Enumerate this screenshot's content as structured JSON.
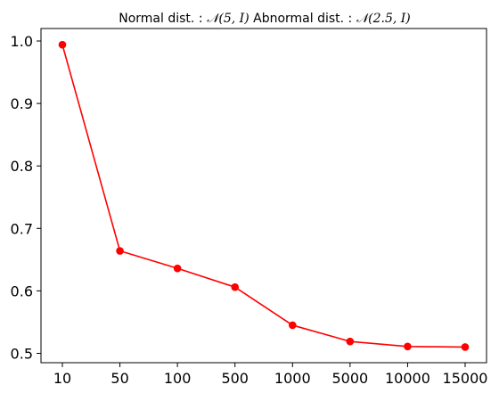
{
  "chart_data": {
    "type": "line",
    "title": {
      "part1": "Normal dist. : ",
      "dist1": "𝒩(5, I)",
      "part2": " Abnormal dist. : ",
      "dist2": "𝒩(2.5, I)"
    },
    "xlabel": "",
    "ylabel": "",
    "categories": [
      "10",
      "50",
      "100",
      "500",
      "1000",
      "5000",
      "10000",
      "15000"
    ],
    "series": [
      {
        "values": [
          0.994,
          0.664,
          0.636,
          0.606,
          0.545,
          0.519,
          0.511,
          0.51
        ],
        "color": "#ff0000",
        "marker": "circle"
      }
    ],
    "ylim": [
      0.485,
      1.02
    ],
    "yticks": [
      0.5,
      0.6,
      0.7,
      0.8,
      0.9,
      1.0
    ],
    "ytick_labels": [
      "0.5",
      "0.6",
      "0.7",
      "0.8",
      "0.9",
      "1.0"
    ],
    "grid": false,
    "legend": "none"
  }
}
